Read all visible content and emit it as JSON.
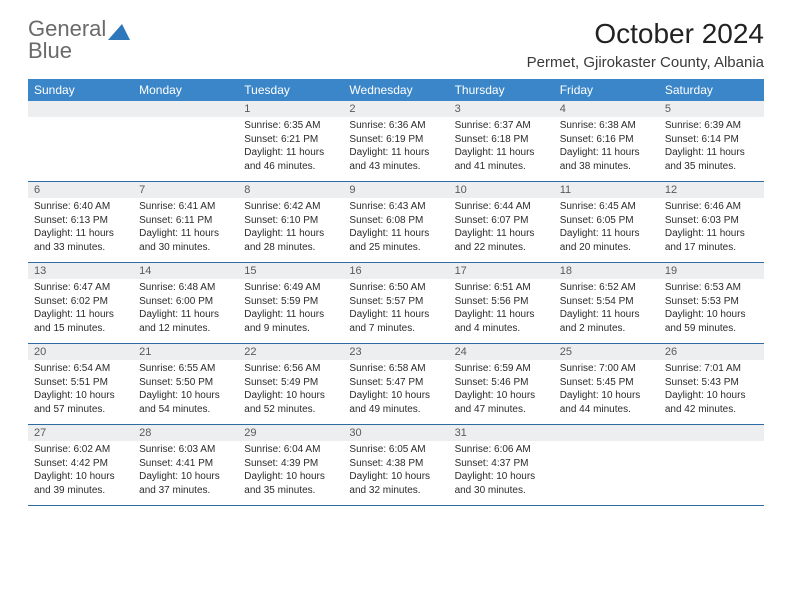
{
  "brand": {
    "line1": "General",
    "line2": "Blue"
  },
  "title": "October 2024",
  "subtitle": "Permet, Gjirokaster County, Albania",
  "colors": {
    "header_bg": "#3b86c8",
    "header_text": "#ffffff",
    "daynum_bg": "#eceef0",
    "daynum_text": "#5a5a5a",
    "week_divider": "#2f6aa3",
    "body_text": "#2b2b2b",
    "page_bg": "#ffffff",
    "logo_blue": "#2f77bb",
    "logo_gray": "#6a6a6a"
  },
  "weekdays": [
    "Sunday",
    "Monday",
    "Tuesday",
    "Wednesday",
    "Thursday",
    "Friday",
    "Saturday"
  ],
  "weeks": [
    [
      {},
      {},
      {
        "n": "1",
        "sr": "Sunrise: 6:35 AM",
        "ss": "Sunset: 6:21 PM",
        "d1": "Daylight: 11 hours",
        "d2": "and 46 minutes."
      },
      {
        "n": "2",
        "sr": "Sunrise: 6:36 AM",
        "ss": "Sunset: 6:19 PM",
        "d1": "Daylight: 11 hours",
        "d2": "and 43 minutes."
      },
      {
        "n": "3",
        "sr": "Sunrise: 6:37 AM",
        "ss": "Sunset: 6:18 PM",
        "d1": "Daylight: 11 hours",
        "d2": "and 41 minutes."
      },
      {
        "n": "4",
        "sr": "Sunrise: 6:38 AM",
        "ss": "Sunset: 6:16 PM",
        "d1": "Daylight: 11 hours",
        "d2": "and 38 minutes."
      },
      {
        "n": "5",
        "sr": "Sunrise: 6:39 AM",
        "ss": "Sunset: 6:14 PM",
        "d1": "Daylight: 11 hours",
        "d2": "and 35 minutes."
      }
    ],
    [
      {
        "n": "6",
        "sr": "Sunrise: 6:40 AM",
        "ss": "Sunset: 6:13 PM",
        "d1": "Daylight: 11 hours",
        "d2": "and 33 minutes."
      },
      {
        "n": "7",
        "sr": "Sunrise: 6:41 AM",
        "ss": "Sunset: 6:11 PM",
        "d1": "Daylight: 11 hours",
        "d2": "and 30 minutes."
      },
      {
        "n": "8",
        "sr": "Sunrise: 6:42 AM",
        "ss": "Sunset: 6:10 PM",
        "d1": "Daylight: 11 hours",
        "d2": "and 28 minutes."
      },
      {
        "n": "9",
        "sr": "Sunrise: 6:43 AM",
        "ss": "Sunset: 6:08 PM",
        "d1": "Daylight: 11 hours",
        "d2": "and 25 minutes."
      },
      {
        "n": "10",
        "sr": "Sunrise: 6:44 AM",
        "ss": "Sunset: 6:07 PM",
        "d1": "Daylight: 11 hours",
        "d2": "and 22 minutes."
      },
      {
        "n": "11",
        "sr": "Sunrise: 6:45 AM",
        "ss": "Sunset: 6:05 PM",
        "d1": "Daylight: 11 hours",
        "d2": "and 20 minutes."
      },
      {
        "n": "12",
        "sr": "Sunrise: 6:46 AM",
        "ss": "Sunset: 6:03 PM",
        "d1": "Daylight: 11 hours",
        "d2": "and 17 minutes."
      }
    ],
    [
      {
        "n": "13",
        "sr": "Sunrise: 6:47 AM",
        "ss": "Sunset: 6:02 PM",
        "d1": "Daylight: 11 hours",
        "d2": "and 15 minutes."
      },
      {
        "n": "14",
        "sr": "Sunrise: 6:48 AM",
        "ss": "Sunset: 6:00 PM",
        "d1": "Daylight: 11 hours",
        "d2": "and 12 minutes."
      },
      {
        "n": "15",
        "sr": "Sunrise: 6:49 AM",
        "ss": "Sunset: 5:59 PM",
        "d1": "Daylight: 11 hours",
        "d2": "and 9 minutes."
      },
      {
        "n": "16",
        "sr": "Sunrise: 6:50 AM",
        "ss": "Sunset: 5:57 PM",
        "d1": "Daylight: 11 hours",
        "d2": "and 7 minutes."
      },
      {
        "n": "17",
        "sr": "Sunrise: 6:51 AM",
        "ss": "Sunset: 5:56 PM",
        "d1": "Daylight: 11 hours",
        "d2": "and 4 minutes."
      },
      {
        "n": "18",
        "sr": "Sunrise: 6:52 AM",
        "ss": "Sunset: 5:54 PM",
        "d1": "Daylight: 11 hours",
        "d2": "and 2 minutes."
      },
      {
        "n": "19",
        "sr": "Sunrise: 6:53 AM",
        "ss": "Sunset: 5:53 PM",
        "d1": "Daylight: 10 hours",
        "d2": "and 59 minutes."
      }
    ],
    [
      {
        "n": "20",
        "sr": "Sunrise: 6:54 AM",
        "ss": "Sunset: 5:51 PM",
        "d1": "Daylight: 10 hours",
        "d2": "and 57 minutes."
      },
      {
        "n": "21",
        "sr": "Sunrise: 6:55 AM",
        "ss": "Sunset: 5:50 PM",
        "d1": "Daylight: 10 hours",
        "d2": "and 54 minutes."
      },
      {
        "n": "22",
        "sr": "Sunrise: 6:56 AM",
        "ss": "Sunset: 5:49 PM",
        "d1": "Daylight: 10 hours",
        "d2": "and 52 minutes."
      },
      {
        "n": "23",
        "sr": "Sunrise: 6:58 AM",
        "ss": "Sunset: 5:47 PM",
        "d1": "Daylight: 10 hours",
        "d2": "and 49 minutes."
      },
      {
        "n": "24",
        "sr": "Sunrise: 6:59 AM",
        "ss": "Sunset: 5:46 PM",
        "d1": "Daylight: 10 hours",
        "d2": "and 47 minutes."
      },
      {
        "n": "25",
        "sr": "Sunrise: 7:00 AM",
        "ss": "Sunset: 5:45 PM",
        "d1": "Daylight: 10 hours",
        "d2": "and 44 minutes."
      },
      {
        "n": "26",
        "sr": "Sunrise: 7:01 AM",
        "ss": "Sunset: 5:43 PM",
        "d1": "Daylight: 10 hours",
        "d2": "and 42 minutes."
      }
    ],
    [
      {
        "n": "27",
        "sr": "Sunrise: 6:02 AM",
        "ss": "Sunset: 4:42 PM",
        "d1": "Daylight: 10 hours",
        "d2": "and 39 minutes."
      },
      {
        "n": "28",
        "sr": "Sunrise: 6:03 AM",
        "ss": "Sunset: 4:41 PM",
        "d1": "Daylight: 10 hours",
        "d2": "and 37 minutes."
      },
      {
        "n": "29",
        "sr": "Sunrise: 6:04 AM",
        "ss": "Sunset: 4:39 PM",
        "d1": "Daylight: 10 hours",
        "d2": "and 35 minutes."
      },
      {
        "n": "30",
        "sr": "Sunrise: 6:05 AM",
        "ss": "Sunset: 4:38 PM",
        "d1": "Daylight: 10 hours",
        "d2": "and 32 minutes."
      },
      {
        "n": "31",
        "sr": "Sunrise: 6:06 AM",
        "ss": "Sunset: 4:37 PM",
        "d1": "Daylight: 10 hours",
        "d2": "and 30 minutes."
      },
      {},
      {}
    ]
  ]
}
